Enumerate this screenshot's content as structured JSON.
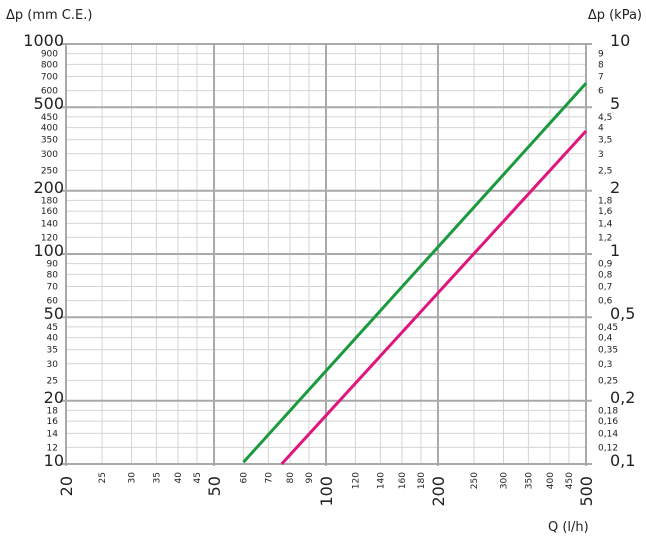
{
  "chart_data": {
    "type": "line",
    "y_label_left": "Δp (mm C.E.)",
    "y_label_right": "Δp (kPa)",
    "xlabel": "Q (l/h)",
    "xscale": "log",
    "yscale": "log",
    "xlim": [
      20,
      500
    ],
    "ylim": [
      10,
      1000
    ],
    "grid": true,
    "x_ticks_major": [
      "20",
      "50",
      "100",
      "200",
      "500"
    ],
    "x_ticks_minor": [
      "25",
      "30",
      "35",
      "40",
      "45",
      "60",
      "70",
      "80",
      "90",
      "120",
      "140",
      "160",
      "180",
      "250",
      "300",
      "350",
      "400",
      "450"
    ],
    "y_left_ticks_major": [
      "10",
      "20",
      "50",
      "100",
      "200",
      "500",
      "1000"
    ],
    "y_left_ticks_minor": [
      "12",
      "14",
      "16",
      "18",
      "25",
      "30",
      "35",
      "40",
      "45",
      "60",
      "70",
      "80",
      "90",
      "120",
      "140",
      "160",
      "180",
      "250",
      "300",
      "350",
      "400",
      "450",
      "600",
      "700",
      "800",
      "900"
    ],
    "y_right_ticks_major": [
      "0,1",
      "0,2",
      "0,5",
      "1",
      "2",
      "5",
      "10"
    ],
    "y_right_ticks_minor": [
      "0,12",
      "0,14",
      "0,16",
      "0,18",
      "0,25",
      "0,3",
      "0,35",
      "0,4",
      "0,45",
      "0,6",
      "0,7",
      "0,8",
      "0,9",
      "1,2",
      "1,4",
      "1,6",
      "1,8",
      "2,5",
      "3",
      "3,5",
      "4",
      "4,5",
      "6",
      "7",
      "8",
      "9"
    ],
    "series": [
      {
        "color": "#1a9a3c",
        "x": [
          60,
          500
        ],
        "y": [
          10.2,
          650
        ]
      },
      {
        "color": "#e0147e",
        "x": [
          76,
          500
        ],
        "y": [
          10,
          385
        ]
      }
    ]
  }
}
